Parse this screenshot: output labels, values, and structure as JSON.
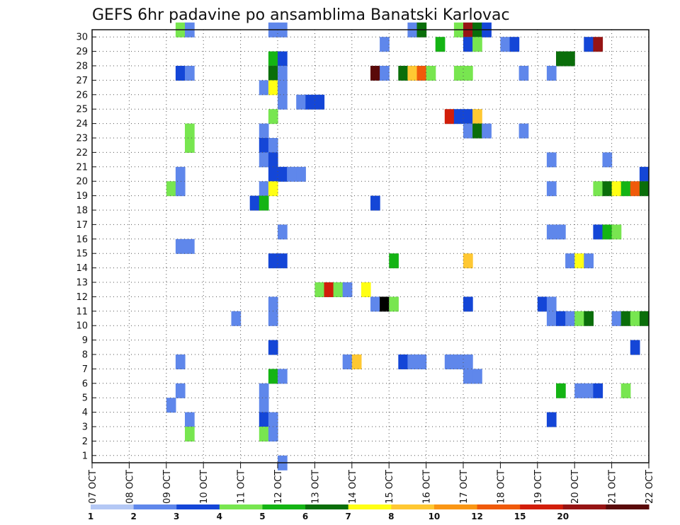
{
  "chart_data": {
    "type": "heatmap",
    "title": "GEFS 6hr padavine po ansamblima Banatski Karlovac",
    "x_tick_labels": [
      "07 OCT",
      "08 OCT",
      "09 OCT",
      "10 OCT",
      "11 OCT",
      "12 OCT",
      "13 OCT",
      "14 OCT",
      "15 OCT",
      "16 OCT",
      "17 OCT",
      "18 OCT",
      "19 OCT",
      "20 OCT",
      "21 OCT",
      "22 OCT"
    ],
    "y_tick_labels": [
      "1",
      "2",
      "3",
      "4",
      "5",
      "6",
      "7",
      "8",
      "9",
      "10",
      "11",
      "12",
      "13",
      "14",
      "15",
      "16",
      "17",
      "18",
      "19",
      "20",
      "21",
      "22",
      "23",
      "24",
      "25",
      "26",
      "27",
      "28",
      "29",
      "30"
    ],
    "x_range_days": [
      0,
      15
    ],
    "y_range": [
      0,
      30
    ],
    "grid": true,
    "colorbar": {
      "levels": [
        "1",
        "2",
        "3",
        "4",
        "5",
        "6",
        "7",
        "8",
        "10",
        "12",
        "15",
        "20"
      ],
      "colors": [
        "#b4c8f5",
        "#5f87eb",
        "#1446d7",
        "#78e650",
        "#14b414",
        "#0a6e0a",
        "#ffff14",
        "#ffc832",
        "#fa9614",
        "#f05a0a",
        "#d21e0a",
        "#961414",
        "#5a0a0a"
      ]
    },
    "cells": [
      [
        9.25,
        30,
        3
      ],
      [
        9.5,
        30,
        1
      ],
      [
        11.75,
        30,
        1
      ],
      [
        12,
        30,
        1
      ],
      [
        15.5,
        30,
        1
      ],
      [
        15.75,
        30,
        5
      ],
      [
        16.75,
        30,
        3
      ],
      [
        17,
        30,
        11
      ],
      [
        17.25,
        30,
        5
      ],
      [
        17.5,
        30,
        2
      ],
      [
        14.75,
        29,
        1
      ],
      [
        16.25,
        29,
        4
      ],
      [
        17,
        29,
        2
      ],
      [
        17.25,
        29,
        3
      ],
      [
        18,
        29,
        1
      ],
      [
        18.25,
        29,
        2
      ],
      [
        20.25,
        29,
        2
      ],
      [
        20.5,
        29,
        11
      ],
      [
        11.75,
        28,
        4
      ],
      [
        12,
        28,
        2
      ],
      [
        19.5,
        28,
        5
      ],
      [
        19.75,
        28,
        5
      ],
      [
        9.25,
        27,
        2
      ],
      [
        9.5,
        27,
        1
      ],
      [
        11.75,
        27,
        5
      ],
      [
        12,
        27,
        1
      ],
      [
        14.5,
        27,
        12
      ],
      [
        14.75,
        27,
        1
      ],
      [
        15.25,
        27,
        5
      ],
      [
        15.5,
        27,
        7
      ],
      [
        15.75,
        27,
        9
      ],
      [
        16,
        27,
        3
      ],
      [
        16.75,
        27,
        3
      ],
      [
        17,
        27,
        3
      ],
      [
        18.5,
        27,
        1
      ],
      [
        19.25,
        27,
        1
      ],
      [
        11.5,
        26,
        1
      ],
      [
        11.75,
        26,
        6
      ],
      [
        12,
        26,
        1
      ],
      [
        12,
        25,
        1
      ],
      [
        12.5,
        25,
        1
      ],
      [
        12.75,
        25,
        2
      ],
      [
        13,
        25,
        2
      ],
      [
        11.75,
        24,
        3
      ],
      [
        16.5,
        24,
        10
      ],
      [
        16.75,
        24,
        2
      ],
      [
        17,
        24,
        2
      ],
      [
        17.25,
        24,
        7
      ],
      [
        9.5,
        23,
        3
      ],
      [
        11.5,
        23,
        1
      ],
      [
        17,
        23,
        1
      ],
      [
        17.25,
        23,
        5
      ],
      [
        17.5,
        23,
        1
      ],
      [
        18.5,
        23,
        1
      ],
      [
        9.5,
        22,
        3
      ],
      [
        11.5,
        22,
        2
      ],
      [
        11.75,
        22,
        1
      ],
      [
        11.5,
        21,
        1
      ],
      [
        11.75,
        21,
        2
      ],
      [
        19.25,
        21,
        1
      ],
      [
        20.75,
        21,
        1
      ],
      [
        9.25,
        20,
        1
      ],
      [
        11.75,
        20,
        2
      ],
      [
        12,
        20,
        2
      ],
      [
        12.25,
        20,
        1
      ],
      [
        12.5,
        20,
        1
      ],
      [
        21.75,
        20,
        2
      ],
      [
        9,
        19,
        3
      ],
      [
        9.25,
        19,
        1
      ],
      [
        11.5,
        19,
        1
      ],
      [
        11.75,
        19,
        6
      ],
      [
        19.25,
        19,
        1
      ],
      [
        20.5,
        19,
        3
      ],
      [
        20.75,
        19,
        5
      ],
      [
        21,
        19,
        6
      ],
      [
        21.25,
        19,
        4
      ],
      [
        21.5,
        19,
        9
      ],
      [
        21.75,
        19,
        5
      ],
      [
        11.25,
        18,
        2
      ],
      [
        11.5,
        18,
        4
      ],
      [
        14.5,
        18,
        2
      ],
      [
        12,
        16,
        1
      ],
      [
        19.25,
        16,
        1
      ],
      [
        19.5,
        16,
        1
      ],
      [
        20.5,
        16,
        2
      ],
      [
        20.75,
        16,
        4
      ],
      [
        21,
        16,
        3
      ],
      [
        9.25,
        15,
        1
      ],
      [
        9.5,
        15,
        1
      ],
      [
        11.75,
        14,
        2
      ],
      [
        12,
        14,
        2
      ],
      [
        15,
        14,
        4
      ],
      [
        17,
        14,
        7
      ],
      [
        19.75,
        14,
        1
      ],
      [
        20,
        14,
        6
      ],
      [
        20.25,
        14,
        1
      ],
      [
        13,
        12,
        3
      ],
      [
        13.25,
        12,
        10
      ],
      [
        13.5,
        12,
        3
      ],
      [
        13.75,
        12,
        1
      ],
      [
        14.25,
        12,
        6
      ],
      [
        11.75,
        11,
        1
      ],
      [
        14.5,
        11,
        1
      ],
      [
        14.75,
        11,
        13
      ],
      [
        15,
        11,
        3
      ],
      [
        17,
        11,
        2
      ],
      [
        19,
        11,
        2
      ],
      [
        19.25,
        11,
        1
      ],
      [
        10.75,
        10,
        1
      ],
      [
        11.75,
        10,
        1
      ],
      [
        19.25,
        10,
        1
      ],
      [
        19.5,
        10,
        2
      ],
      [
        19.75,
        10,
        1
      ],
      [
        20,
        10,
        3
      ],
      [
        20.25,
        10,
        5
      ],
      [
        21,
        10,
        1
      ],
      [
        21.25,
        10,
        5
      ],
      [
        21.5,
        10,
        3
      ],
      [
        21.75,
        10,
        5
      ],
      [
        11.75,
        8,
        2
      ],
      [
        21.5,
        8,
        2
      ],
      [
        9.25,
        7,
        1
      ],
      [
        13.75,
        7,
        1
      ],
      [
        14,
        7,
        7
      ],
      [
        15.25,
        7,
        2
      ],
      [
        15.5,
        7,
        1
      ],
      [
        15.75,
        7,
        1
      ],
      [
        16.5,
        7,
        1
      ],
      [
        16.75,
        7,
        1
      ],
      [
        17,
        7,
        1
      ],
      [
        11.75,
        6,
        4
      ],
      [
        12,
        6,
        1
      ],
      [
        17,
        6,
        1
      ],
      [
        17.25,
        6,
        1
      ],
      [
        9.25,
        5,
        1
      ],
      [
        11.5,
        5,
        1
      ],
      [
        19.5,
        5,
        4
      ],
      [
        20,
        5,
        1
      ],
      [
        20.25,
        5,
        1
      ],
      [
        20.5,
        5,
        2
      ],
      [
        21.25,
        5,
        3
      ],
      [
        9,
        4,
        1
      ],
      [
        11.5,
        4,
        1
      ],
      [
        9.5,
        3,
        1
      ],
      [
        11.5,
        3,
        2
      ],
      [
        11.75,
        3,
        1
      ],
      [
        19.25,
        3,
        2
      ],
      [
        9.5,
        2,
        3
      ],
      [
        11.5,
        2,
        3
      ],
      [
        11.75,
        2,
        1
      ],
      [
        12,
        0,
        1
      ]
    ]
  }
}
